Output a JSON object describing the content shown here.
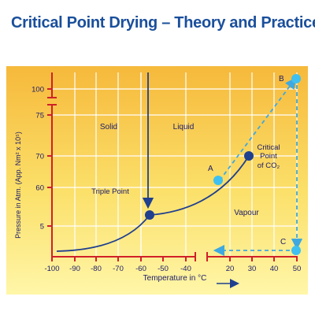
{
  "title": "Critical Point Drying – Theory and Practice",
  "colors": {
    "title": "#1a4f9c",
    "curve": "#1f3f8f",
    "dashed": "#3fa8e0",
    "grid": "#ffffff",
    "axis_red": "#d0202a",
    "bg_top": "#f6b93b",
    "bg_bottom": "#fff6a8"
  },
  "chart_data": {
    "type": "phase-diagram",
    "xlabel": "Temperature in °C",
    "ylabel": "Pressure in Atm. (App. Nm² x 10⁵)",
    "x_ticks": [
      "-100",
      "-90",
      "-80",
      "-70",
      "-60",
      "-50",
      "-40",
      "20",
      "30",
      "40",
      "50"
    ],
    "y_ticks": [
      "100",
      "75",
      "70",
      "60",
      "5"
    ],
    "regions": [
      "Solid",
      "Liquid",
      "Vapour"
    ],
    "annotations": {
      "triple_point": "Triple Point",
      "critical_point": [
        "Critical",
        "Point",
        "of CO₂"
      ]
    },
    "points": {
      "A": {
        "label": "A",
        "x": 16,
        "y": 62
      },
      "B": {
        "label": "B",
        "x": 50,
        "y": 100
      },
      "C": {
        "label": "C",
        "x": 50,
        "y": 3
      },
      "triple": {
        "x": -56.6,
        "y": 5.1
      },
      "critical": {
        "x": 31,
        "y": 73
      }
    }
  }
}
